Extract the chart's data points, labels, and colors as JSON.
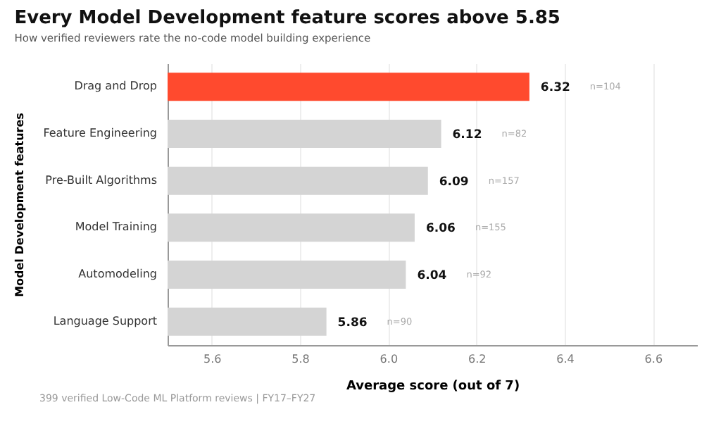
{
  "chart_data": {
    "type": "bar",
    "orientation": "horizontal",
    "title": "Every Model Development feature scores above 5.85",
    "subtitle": "How verified reviewers rate the no-code model building experience",
    "xlabel": "Average score (out of 7)",
    "ylabel": "Model Development features",
    "categories": [
      "Drag and Drop",
      "Feature Engineering",
      "Pre-Built Algorithms",
      "Model Training",
      "Automodeling",
      "Language Support"
    ],
    "values": [
      6.32,
      6.12,
      6.09,
      6.06,
      6.04,
      5.86
    ],
    "colors": [
      "#ff4a2e",
      "#d4d4d4",
      "#d4d4d4",
      "#d4d4d4",
      "#d4d4d4",
      "#d4d4d4"
    ],
    "xlim": [
      5.5,
      6.7
    ],
    "xticks": [
      5.6,
      5.8,
      {
        "value": 6,
        "label": "6.0"
      },
      6.2,
      6.4,
      6.6
    ],
    "grid": "x",
    "data_labels": true,
    "annotations": [
      "n=104",
      "n=82",
      "n=157",
      "n=155",
      "n=92",
      "n=90",
      "399 verified Low-Code ML Platform reviews  |  FY17–FY27"
    ]
  }
}
